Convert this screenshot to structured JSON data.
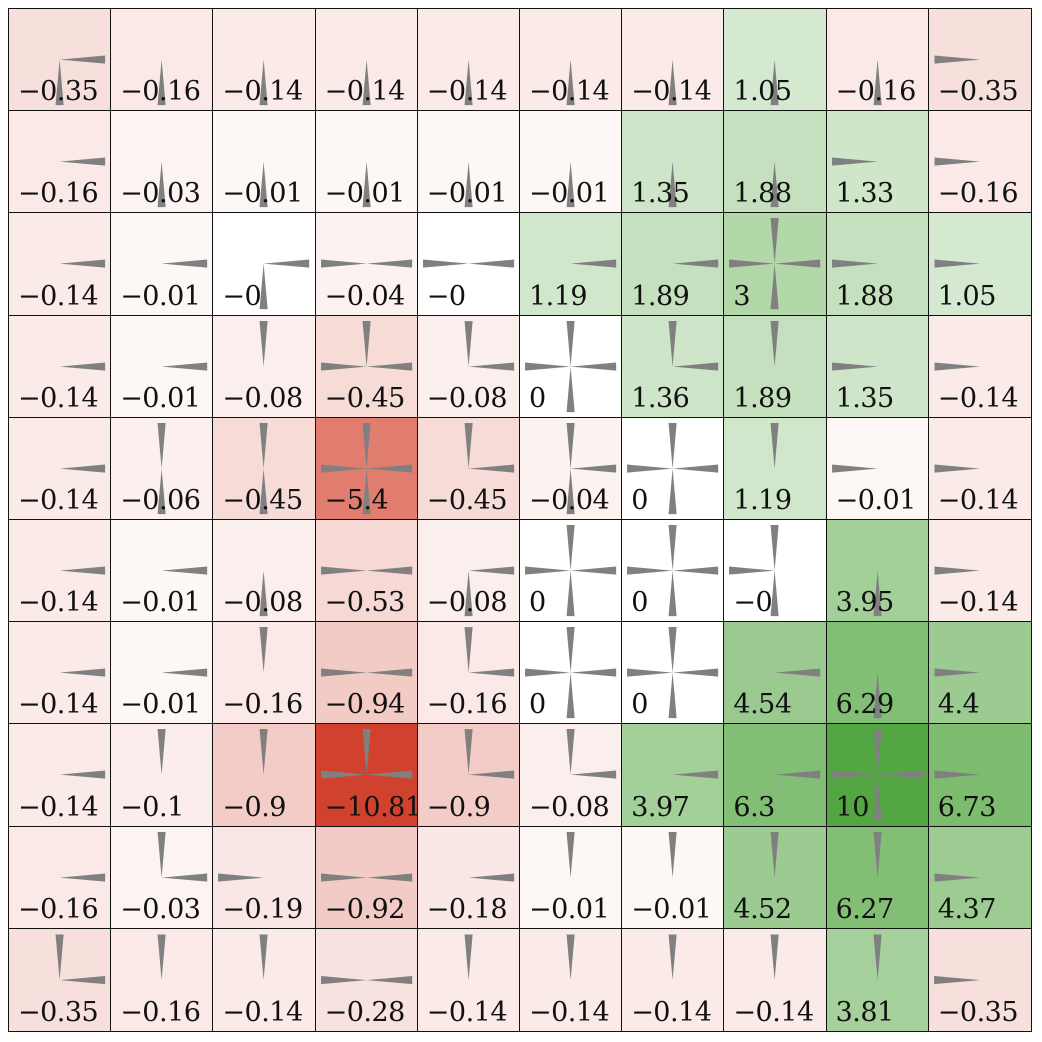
{
  "grid": {
    "rows": 10,
    "cols": 10,
    "arrow_color": "#808080",
    "negative_color": "#d03c28",
    "positive_color": "#51a43e",
    "values": [
      [
        "−0.35",
        "−0.16",
        "−0.14",
        "−0.14",
        "−0.14",
        "−0.14",
        "−0.14",
        "1.05",
        "−0.16",
        "−0.35"
      ],
      [
        "−0.16",
        "−0.03",
        "−0.01",
        "−0.01",
        "−0.01",
        "−0.01",
        "1.35",
        "1.88",
        "1.33",
        "−0.16"
      ],
      [
        "−0.14",
        "−0.01",
        "−0",
        "−0.04",
        "−0",
        "1.19",
        "1.89",
        "3",
        "1.88",
        "1.05"
      ],
      [
        "−0.14",
        "−0.01",
        "−0.08",
        "−0.45",
        "−0.08",
        "0",
        "1.36",
        "1.89",
        "1.35",
        "−0.14"
      ],
      [
        "−0.14",
        "−0.06",
        "−0.45",
        "−5.4",
        "−0.45",
        "−0.04",
        "0",
        "1.19",
        "−0.01",
        "−0.14"
      ],
      [
        "−0.14",
        "−0.01",
        "−0.08",
        "−0.53",
        "−0.08",
        "0",
        "0",
        "−0",
        "3.95",
        "−0.14"
      ],
      [
        "−0.14",
        "−0.01",
        "−0.16",
        "−0.94",
        "−0.16",
        "0",
        "0",
        "4.54",
        "6.29",
        "4.4"
      ],
      [
        "−0.14",
        "−0.1",
        "−0.9",
        "−10.81",
        "−0.9",
        "−0.08",
        "3.97",
        "6.3",
        "10",
        "6.73"
      ],
      [
        "−0.16",
        "−0.03",
        "−0.19",
        "−0.92",
        "−0.18",
        "−0.01",
        "−0.01",
        "4.52",
        "6.27",
        "4.37"
      ],
      [
        "−0.35",
        "−0.16",
        "−0.14",
        "−0.28",
        "−0.14",
        "−0.14",
        "−0.14",
        "−0.14",
        "3.81",
        "−0.35"
      ]
    ],
    "arrows": [
      [
        "RD",
        "D",
        "D",
        "D",
        "D",
        "D",
        "D",
        "D",
        "D",
        "L"
      ],
      [
        "R",
        "D",
        "D",
        "D",
        "D",
        "D",
        "D",
        "D",
        "L",
        "L"
      ],
      [
        "R",
        "R",
        "RD",
        "LR",
        "LR",
        "R",
        "R",
        "URDL",
        "L",
        "L"
      ],
      [
        "R",
        "R",
        "U",
        "URL",
        "UR",
        "URDL",
        "UR",
        "U",
        "L",
        "L"
      ],
      [
        "R",
        "UD",
        "UD",
        "URDL",
        "UR",
        "URD",
        "URDL",
        "U",
        "L",
        "L"
      ],
      [
        "R",
        "R",
        "D",
        "LR",
        "RD",
        "URDL",
        "URDL",
        "UDL",
        "D",
        "L"
      ],
      [
        "R",
        "R",
        "U",
        "LR",
        "UR",
        "URDL",
        "URDL",
        "R",
        "D",
        "L"
      ],
      [
        "R",
        "U",
        "U",
        "URL",
        "UR",
        "UR",
        "R",
        "R",
        "URDL",
        "L"
      ],
      [
        "R",
        "UR",
        "L",
        "LR",
        "R",
        "U",
        "U",
        "U",
        "U",
        "L"
      ],
      [
        "UR",
        "U",
        "U",
        "LR",
        "U",
        "U",
        "U",
        "U",
        "U",
        "L"
      ]
    ]
  }
}
